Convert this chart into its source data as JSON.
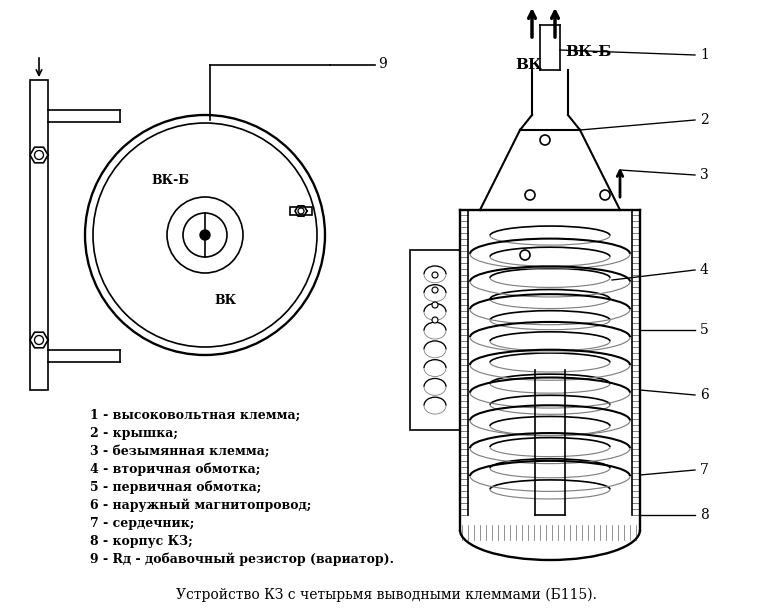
{
  "title": "Устройство КЗ с четырьмя выводными клеммами (Б115).",
  "background_color": "#ffffff",
  "legend_items": [
    "1 - высоковольтная клемма;",
    "2 - крышка;",
    "3 - безымянная клемма;",
    "4 - вторичная обмотка;",
    "5 - первичная обмотка;",
    "6 - наружный магнитопровод;",
    "7 - сердечник;",
    "8 - корпус КЗ;",
    "9 - Rд - добавочный резистор (вариатор)."
  ],
  "label_VKB": "ВК-Б",
  "label_VK": "ВК",
  "line_color": "#000000",
  "font_size_legend": 9,
  "font_size_title": 9,
  "font_size_labels": 10
}
